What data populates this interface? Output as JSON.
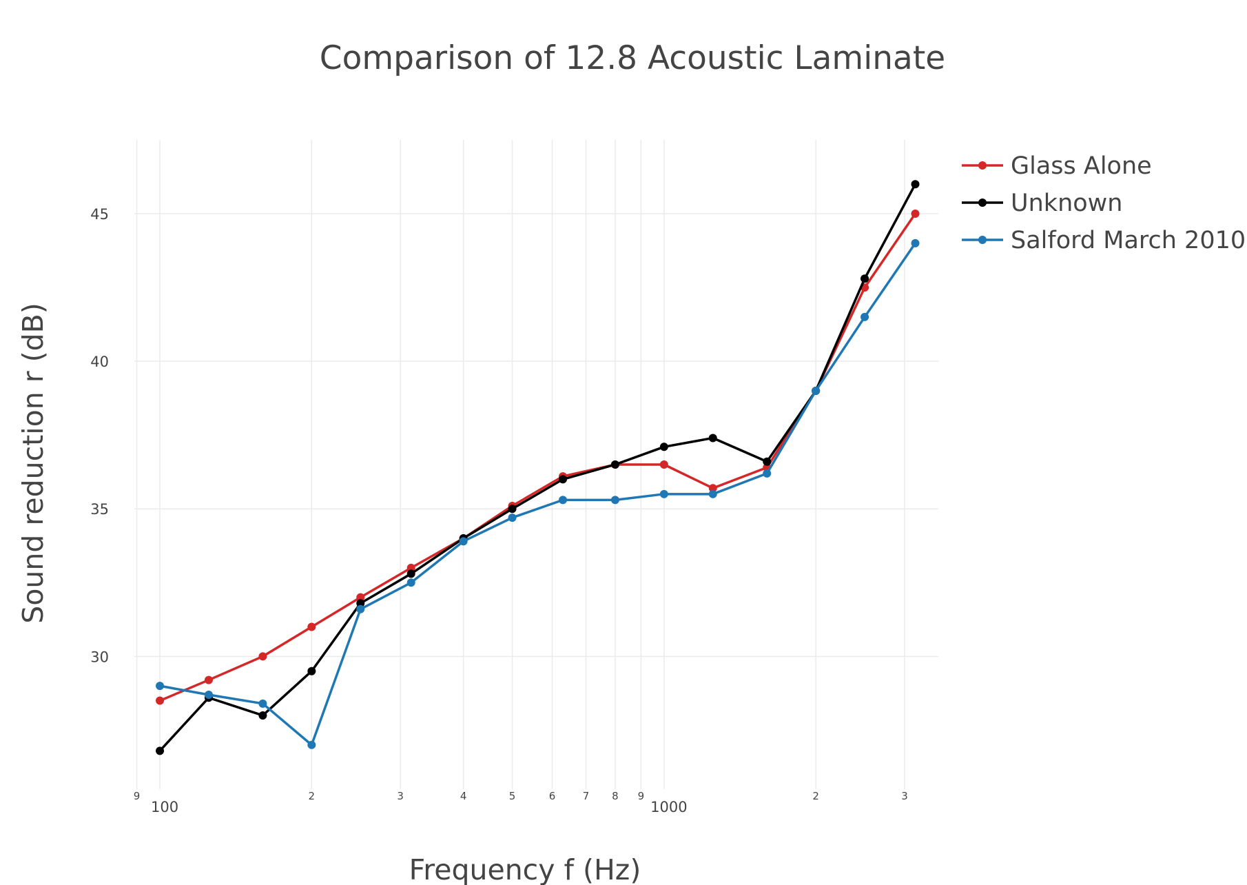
{
  "chart_data": {
    "type": "line",
    "title": "Comparison of 12.8 Acoustic Laminate",
    "xlabel": "Frequency f (Hz)",
    "ylabel": "Sound reduction r (dB)",
    "x_scale": "log",
    "xlim": [
      89,
      3500
    ],
    "ylim": [
      25.5,
      47.5
    ],
    "y_ticks": [
      30,
      35,
      40,
      45
    ],
    "x_ticks": [
      {
        "value": 90,
        "label": "9"
      },
      {
        "value": 100,
        "label": "100"
      },
      {
        "value": 200,
        "label": "2"
      },
      {
        "value": 300,
        "label": "3"
      },
      {
        "value": 400,
        "label": "4"
      },
      {
        "value": 500,
        "label": "5"
      },
      {
        "value": 600,
        "label": "6"
      },
      {
        "value": 700,
        "label": "7"
      },
      {
        "value": 800,
        "label": "8"
      },
      {
        "value": 900,
        "label": "9"
      },
      {
        "value": 1000,
        "label": "1000"
      },
      {
        "value": 2000,
        "label": "2"
      },
      {
        "value": 3000,
        "label": "3"
      }
    ],
    "grid": true,
    "legend_position": "top-right",
    "x": [
      100,
      125,
      160,
      200,
      250,
      315,
      400,
      500,
      630,
      800,
      1000,
      1250,
      1600,
      2000,
      2500,
      3150
    ],
    "series": [
      {
        "name": "Glass Alone",
        "color": "#d62728",
        "values": [
          28.5,
          29.2,
          30.0,
          31.0,
          32.0,
          33.0,
          34.0,
          35.1,
          36.1,
          36.5,
          36.5,
          35.7,
          36.4,
          39.0,
          42.5,
          45.0
        ]
      },
      {
        "name": "Unknown",
        "color": "#000000",
        "values": [
          26.8,
          28.6,
          28.0,
          29.5,
          31.8,
          32.8,
          34.0,
          35.0,
          36.0,
          36.5,
          37.1,
          37.4,
          36.6,
          39.0,
          42.8,
          46.0
        ]
      },
      {
        "name": "Salford March 2010",
        "color": "#1f77b4",
        "values": [
          29.0,
          28.7,
          28.4,
          27.0,
          31.6,
          32.5,
          33.9,
          34.7,
          35.3,
          35.3,
          35.5,
          35.5,
          36.2,
          39.0,
          41.5,
          44.0
        ]
      }
    ]
  }
}
